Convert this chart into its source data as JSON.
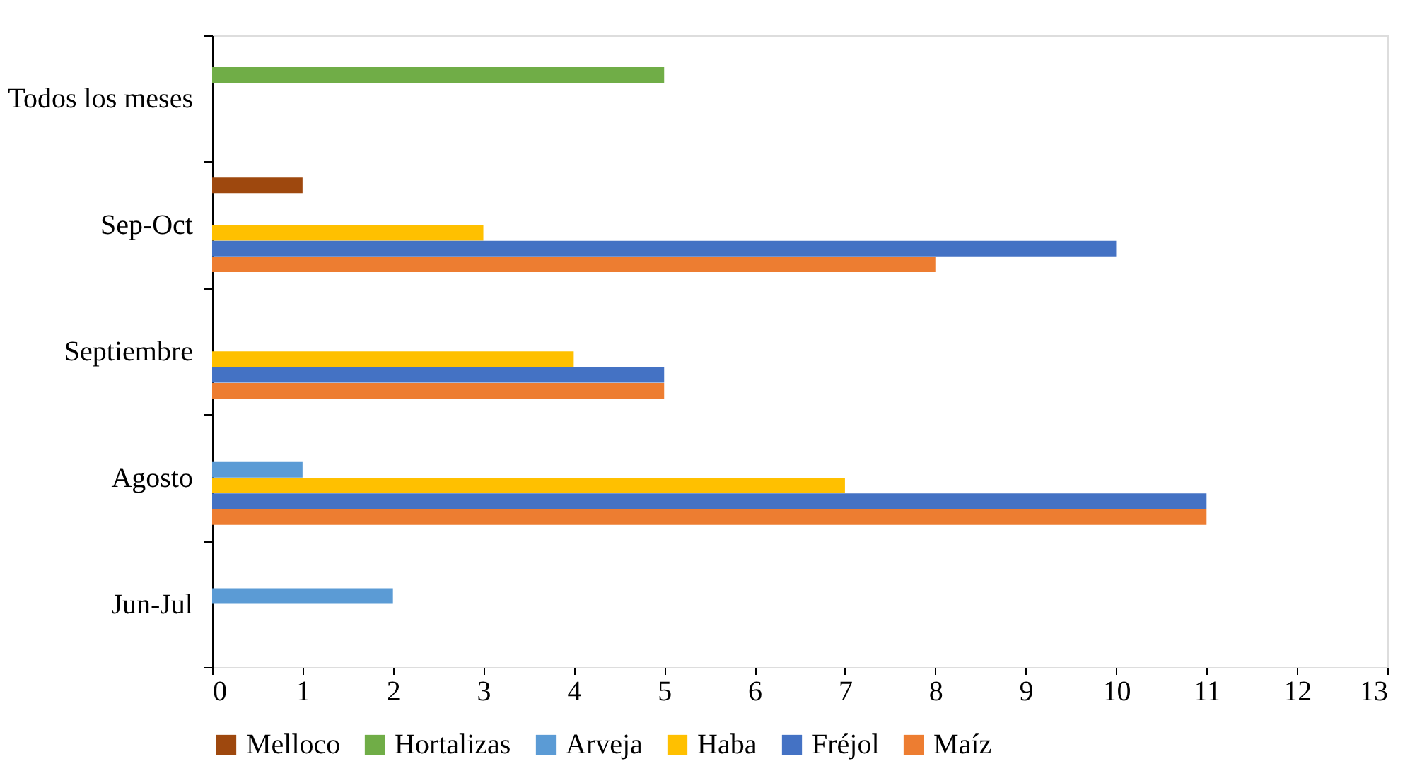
{
  "chart_data": {
    "type": "bar",
    "orientation": "horizontal",
    "categories": [
      "Todos los meses",
      "Sep-Oct",
      "Septiembre",
      "Agosto",
      "Jun-Jul"
    ],
    "series": [
      {
        "name": "Melloco",
        "color": "#9e480e",
        "values": [
          null,
          1,
          null,
          null,
          null
        ]
      },
      {
        "name": "Hortalizas",
        "color": "#70ad47",
        "values": [
          5,
          null,
          null,
          null,
          null
        ]
      },
      {
        "name": "Arveja",
        "color": "#5b9bd5",
        "values": [
          null,
          null,
          null,
          1,
          2
        ]
      },
      {
        "name": "Haba",
        "color": "#ffc000",
        "values": [
          null,
          3,
          4,
          7,
          null
        ]
      },
      {
        "name": "Fréjol",
        "color": "#4472c4",
        "values": [
          null,
          10,
          5,
          11,
          null
        ]
      },
      {
        "name": "Maíz",
        "color": "#ed7d31",
        "values": [
          null,
          8,
          5,
          11,
          null
        ]
      }
    ],
    "xlim": [
      0,
      13
    ],
    "xticks": [
      0,
      1,
      2,
      3,
      4,
      5,
      6,
      7,
      8,
      9,
      10,
      11,
      12,
      13
    ],
    "grid": false,
    "legend": "bottom"
  }
}
